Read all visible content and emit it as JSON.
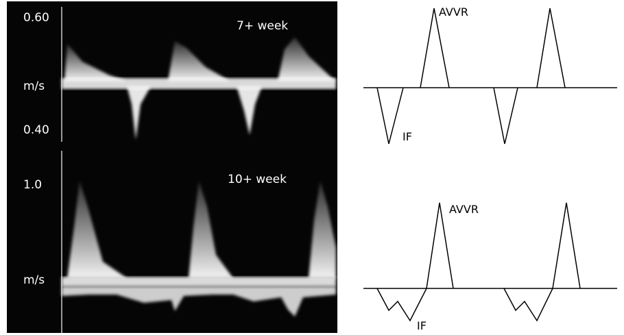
{
  "doppler": {
    "top_panel": {
      "scale_top": "0.60",
      "scale_mid": "m/s",
      "scale_bottom": "0.40",
      "title": "7+ week"
    },
    "bottom_panel": {
      "scale_top": "1.0",
      "scale_mid": "m/s",
      "title": "10+ week"
    }
  },
  "diagram": {
    "top": {
      "peak_label": "AVVR",
      "trough_label": "IF"
    },
    "bottom": {
      "peak_label": "AVVR",
      "trough_label": "IF"
    }
  },
  "colors": {
    "background": "#050505",
    "signal": "#ffffff",
    "line": "#000000"
  }
}
